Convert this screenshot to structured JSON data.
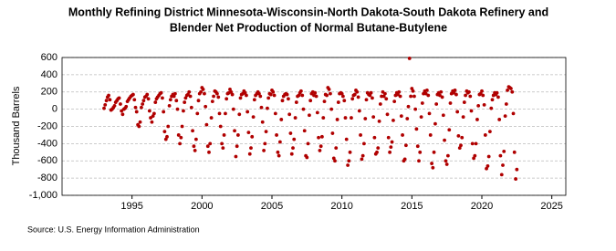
{
  "chart_data": {
    "type": "scatter",
    "title_lines": [
      "Monthly Refining District Minnesota-Wisconsin-North Dakota-South Dakota Refinery and",
      "Blender Net Production of Normal Butane-Butylene"
    ],
    "y_label": "Thousand Barrels",
    "source": "Source: U.S. Energy Information Administration",
    "color": "#b00000",
    "grid": true,
    "xlim": [
      1990,
      2026
    ],
    "xticks": [
      1995,
      2000,
      2005,
      2010,
      2015,
      2020,
      2025
    ],
    "ylim": [
      -1000,
      600
    ],
    "yticks": [
      {
        "value": -1000,
        "label": "-1,000"
      },
      -800,
      -600,
      -400,
      -200,
      0,
      200,
      400,
      600
    ],
    "x": [
      1993.0,
      1993.08,
      1993.17,
      1993.25,
      1993.33,
      1993.42,
      1993.5,
      1993.58,
      1993.67,
      1993.75,
      1993.83,
      1993.92,
      1994.0,
      1994.08,
      1994.17,
      1994.25,
      1994.33,
      1994.42,
      1994.5,
      1994.58,
      1994.67,
      1994.75,
      1994.83,
      1994.92,
      1995.0,
      1995.08,
      1995.17,
      1995.25,
      1995.33,
      1995.42,
      1995.5,
      1995.58,
      1995.67,
      1995.75,
      1995.83,
      1995.92,
      1996.0,
      1996.08,
      1996.17,
      1996.25,
      1996.33,
      1996.42,
      1996.5,
      1996.58,
      1996.67,
      1996.75,
      1996.83,
      1996.92,
      1997.0,
      1997.08,
      1997.17,
      1997.25,
      1997.33,
      1997.42,
      1997.5,
      1997.58,
      1997.67,
      1997.75,
      1997.83,
      1997.92,
      1998.0,
      1998.08,
      1998.17,
      1998.25,
      1998.33,
      1998.42,
      1998.5,
      1998.58,
      1998.67,
      1998.75,
      1998.83,
      1998.92,
      1999.0,
      1999.08,
      1999.17,
      1999.25,
      1999.33,
      1999.42,
      1999.5,
      1999.58,
      1999.67,
      1999.75,
      1999.83,
      1999.92,
      2000.0,
      2000.08,
      2000.17,
      2000.25,
      2000.33,
      2000.42,
      2000.5,
      2000.58,
      2000.67,
      2000.75,
      2000.83,
      2000.92,
      2001.0,
      2001.08,
      2001.17,
      2001.25,
      2001.33,
      2001.42,
      2001.5,
      2001.58,
      2001.67,
      2001.75,
      2001.83,
      2001.92,
      2002.0,
      2002.08,
      2002.17,
      2002.25,
      2002.33,
      2002.42,
      2002.5,
      2002.58,
      2002.67,
      2002.75,
      2002.83,
      2002.92,
      2003.0,
      2003.08,
      2003.17,
      2003.25,
      2003.33,
      2003.42,
      2003.5,
      2003.58,
      2003.67,
      2003.75,
      2003.83,
      2003.92,
      2004.0,
      2004.08,
      2004.17,
      2004.25,
      2004.33,
      2004.42,
      2004.5,
      2004.58,
      2004.67,
      2004.75,
      2004.83,
      2004.92,
      2005.0,
      2005.08,
      2005.17,
      2005.25,
      2005.33,
      2005.42,
      2005.5,
      2005.58,
      2005.67,
      2005.75,
      2005.83,
      2005.92,
      2006.0,
      2006.08,
      2006.17,
      2006.25,
      2006.33,
      2006.42,
      2006.5,
      2006.58,
      2006.67,
      2006.75,
      2006.83,
      2006.92,
      2007.0,
      2007.08,
      2007.17,
      2007.25,
      2007.33,
      2007.42,
      2007.5,
      2007.58,
      2007.67,
      2007.75,
      2007.83,
      2007.92,
      2008.0,
      2008.08,
      2008.17,
      2008.25,
      2008.33,
      2008.42,
      2008.5,
      2008.58,
      2008.67,
      2008.75,
      2008.83,
      2008.92,
      2009.0,
      2009.08,
      2009.17,
      2009.25,
      2009.33,
      2009.42,
      2009.5,
      2009.58,
      2009.67,
      2009.75,
      2009.83,
      2009.92,
      2010.0,
      2010.08,
      2010.17,
      2010.25,
      2010.33,
      2010.42,
      2010.5,
      2010.58,
      2010.67,
      2010.75,
      2010.83,
      2010.92,
      2011.0,
      2011.08,
      2011.17,
      2011.25,
      2011.33,
      2011.42,
      2011.5,
      2011.58,
      2011.67,
      2011.75,
      2011.83,
      2011.92,
      2012.0,
      2012.08,
      2012.17,
      2012.25,
      2012.33,
      2012.42,
      2012.5,
      2012.58,
      2012.67,
      2012.75,
      2012.83,
      2012.92,
      2013.0,
      2013.08,
      2013.17,
      2013.25,
      2013.33,
      2013.42,
      2013.5,
      2013.58,
      2013.67,
      2013.75,
      2013.83,
      2013.92,
      2014.0,
      2014.08,
      2014.17,
      2014.25,
      2014.33,
      2014.42,
      2014.5,
      2014.58,
      2014.67,
      2014.75,
      2014.83,
      2014.92,
      2015.0,
      2015.08,
      2015.17,
      2015.25,
      2015.33,
      2015.42,
      2015.5,
      2015.58,
      2015.67,
      2015.75,
      2015.83,
      2015.92,
      2016.0,
      2016.08,
      2016.17,
      2016.25,
      2016.33,
      2016.42,
      2016.5,
      2016.58,
      2016.67,
      2016.75,
      2016.83,
      2016.92,
      2017.0,
      2017.08,
      2017.17,
      2017.25,
      2017.33,
      2017.42,
      2017.5,
      2017.58,
      2017.67,
      2017.75,
      2017.83,
      2017.92,
      2018.0,
      2018.08,
      2018.17,
      2018.25,
      2018.33,
      2018.42,
      2018.5,
      2018.58,
      2018.67,
      2018.75,
      2018.83,
      2018.92,
      2019.0,
      2019.08,
      2019.17,
      2019.25,
      2019.33,
      2019.42,
      2019.5,
      2019.58,
      2019.67,
      2019.75,
      2019.83,
      2019.92,
      2020.0,
      2020.08,
      2020.17,
      2020.25,
      2020.33,
      2020.42,
      2020.5,
      2020.58,
      2020.67,
      2020.75,
      2020.83,
      2020.92,
      2021.0,
      2021.08,
      2021.17,
      2021.25,
      2021.33,
      2021.42,
      2021.5,
      2021.58,
      2021.67,
      2021.75,
      2021.83,
      2021.92,
      2022.0,
      2022.08,
      2022.17,
      2022.25,
      2022.33,
      2022.42,
      2022.5
    ],
    "values": [
      10,
      50,
      100,
      140,
      160,
      110,
      -10,
      0,
      20,
      40,
      80,
      100,
      120,
      130,
      60,
      -20,
      -60,
      0,
      10,
      30,
      90,
      110,
      130,
      150,
      160,
      170,
      110,
      20,
      -30,
      -180,
      -200,
      -150,
      20,
      60,
      100,
      140,
      150,
      170,
      120,
      -20,
      -100,
      -150,
      -80,
      -50,
      80,
      120,
      140,
      160,
      180,
      190,
      130,
      -30,
      -260,
      -350,
      -320,
      -200,
      40,
      110,
      150,
      170,
      150,
      180,
      100,
      0,
      -300,
      -400,
      -330,
      -200,
      -20,
      80,
      130,
      160,
      170,
      200,
      150,
      20,
      -250,
      -430,
      -480,
      -350,
      -50,
      100,
      180,
      200,
      250,
      230,
      180,
      30,
      -180,
      -430,
      -500,
      -400,
      -100,
      90,
      150,
      210,
      200,
      180,
      140,
      -50,
      -200,
      -400,
      -450,
      -300,
      -50,
      120,
      180,
      190,
      230,
      200,
      170,
      0,
      -250,
      -550,
      -430,
      -300,
      -60,
      130,
      170,
      180,
      210,
      190,
      160,
      -30,
      -270,
      -520,
      -450,
      -320,
      -90,
      110,
      160,
      180,
      200,
      180,
      150,
      20,
      -150,
      -480,
      -400,
      -260,
      10,
      130,
      180,
      170,
      220,
      200,
      160,
      -50,
      -300,
      -500,
      -540,
      -380,
      -120,
      100,
      150,
      170,
      180,
      170,
      120,
      -60,
      -280,
      -520,
      -450,
      -350,
      -100,
      80,
      150,
      160,
      190,
      210,
      160,
      0,
      -250,
      -540,
      -560,
      -400,
      -70,
      100,
      180,
      200,
      160,
      190,
      150,
      -40,
      -330,
      -480,
      -430,
      -320,
      -100,
      90,
      170,
      160,
      250,
      230,
      180,
      0,
      -280,
      -570,
      -600,
      -450,
      -120,
      80,
      180,
      190,
      180,
      150,
      100,
      -100,
      -350,
      -650,
      -600,
      -500,
      -100,
      120,
      160,
      170,
      220,
      200,
      140,
      -20,
      -300,
      -580,
      -540,
      -400,
      -110,
      110,
      190,
      170,
      160,
      190,
      130,
      -90,
      -330,
      -520,
      -500,
      -450,
      -140,
      60,
      150,
      200,
      150,
      180,
      120,
      -60,
      -330,
      -500,
      -440,
      -380,
      -130,
      90,
      160,
      190,
      170,
      200,
      150,
      -80,
      -300,
      -600,
      -580,
      -420,
      -110,
      30,
      590,
      150,
      240,
      210,
      150,
      0,
      -230,
      -430,
      -600,
      -500,
      -90,
      70,
      180,
      210,
      180,
      220,
      160,
      -50,
      -300,
      -630,
      -680,
      -500,
      -170,
      60,
      170,
      190,
      160,
      200,
      140,
      -70,
      -360,
      -600,
      -640,
      -540,
      -240,
      70,
      180,
      210,
      190,
      220,
      170,
      -30,
      -310,
      -450,
      -420,
      -330,
      -90,
      80,
      160,
      210,
      190,
      200,
      150,
      -20,
      -400,
      -570,
      -540,
      -400,
      -120,
      40,
      170,
      180,
      210,
      160,
      50,
      -300,
      -690,
      -660,
      -550,
      -260,
      10,
      110,
      160,
      190,
      170,
      190,
      140,
      -120,
      -540,
      -760,
      -650,
      -490,
      -80,
      60,
      220,
      260,
      250,
      240,
      200,
      -50,
      -500,
      -810,
      -700
    ]
  }
}
